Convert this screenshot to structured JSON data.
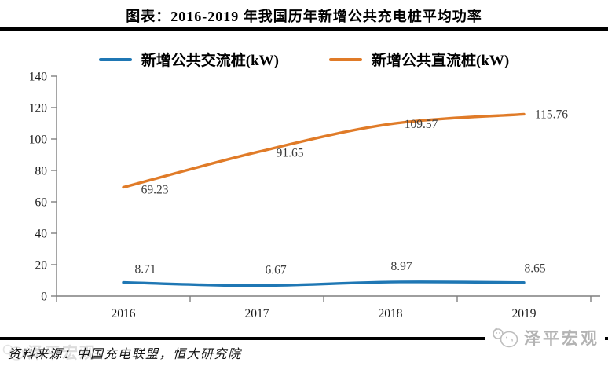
{
  "title": "图表：2016-2019 年我国历年新增公共充电桩平均功率",
  "source_note": "资料来源：中国充电联盟，恒大研究院",
  "branding": {
    "logo_text": "泽平宏观",
    "watermark_text": "泽平宏观"
  },
  "chart_data": {
    "type": "line",
    "title": "2016-2019 年我国历年新增公共充电桩平均功率",
    "categories": [
      "2016",
      "2017",
      "2018",
      "2019"
    ],
    "series": [
      {
        "name": "新增公共交流桩(kW)",
        "color": "#1F77B4",
        "values": [
          8.71,
          6.67,
          8.97,
          8.65
        ]
      },
      {
        "name": "新增公共直流桩(kW)",
        "color": "#E07B28",
        "values": [
          69.23,
          91.65,
          109.57,
          115.76
        ]
      }
    ],
    "ylim": [
      0,
      140
    ],
    "yticks": [
      0,
      20,
      40,
      60,
      80,
      100,
      120,
      140
    ],
    "xlabel": "",
    "ylabel": "",
    "grid": false,
    "smooth": true,
    "legend_position": "top",
    "axis_color": "#7f7f7f",
    "tick_label_color": "#1a1a1a",
    "data_label_color": "#3a3a3a"
  }
}
